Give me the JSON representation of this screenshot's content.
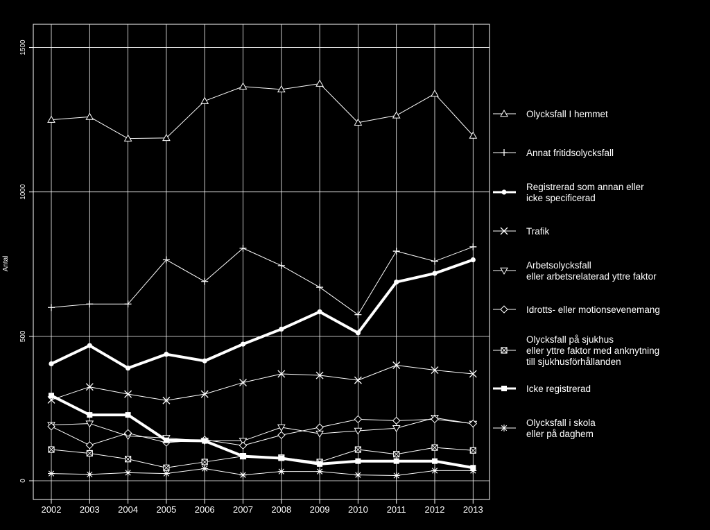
{
  "chart_data": {
    "type": "line",
    "ylabel": "Antal",
    "ylim": [
      0,
      1500
    ],
    "yticks": [
      0,
      500,
      1000,
      1500
    ],
    "grid": true,
    "legend_position": "right",
    "x": [
      "2002",
      "2003",
      "2004",
      "2005",
      "2006",
      "2007",
      "2008",
      "2009",
      "2010",
      "2011",
      "2012",
      "2013"
    ],
    "series": [
      {
        "name": [
          "Olycksfall I hemmet"
        ],
        "marker": "triangle-up",
        "width": 1,
        "color": "#ffffff",
        "values": [
          1250,
          1260,
          1185,
          1187,
          1315,
          1365,
          1355,
          1375,
          1240,
          1265,
          1340,
          1195
        ]
      },
      {
        "name": [
          "Annat fritidsolycksfall"
        ],
        "marker": "plus",
        "width": 1,
        "color": "#ffffff",
        "values": [
          600,
          612,
          612,
          765,
          690,
          805,
          745,
          670,
          575,
          795,
          760,
          810
        ]
      },
      {
        "name": [
          "Registrerad som annan eller",
          "icke specificerad"
        ],
        "marker": "dot",
        "width": 4,
        "color": "#ffffff",
        "values": [
          405,
          468,
          390,
          438,
          415,
          473,
          525,
          585,
          512,
          688,
          718,
          765
        ]
      },
      {
        "name": [
          "Trafik"
        ],
        "marker": "x",
        "width": 1,
        "color": "#ffffff",
        "values": [
          280,
          325,
          300,
          278,
          300,
          340,
          370,
          365,
          348,
          400,
          383,
          370
        ]
      },
      {
        "name": [
          "Arbetsolycksfall",
          "eller arbetsrelaterad yttre faktor"
        ],
        "marker": "triangle-down",
        "width": 1,
        "color": "#ffffff",
        "values": [
          193,
          198,
          155,
          148,
          138,
          138,
          185,
          163,
          173,
          182,
          218,
          197
        ]
      },
      {
        "name": [
          "Idrotts- eller motionsevenemang"
        ],
        "marker": "diamond",
        "width": 1,
        "color": "#ffffff",
        "values": [
          188,
          123,
          165,
          132,
          142,
          122,
          158,
          185,
          213,
          208,
          213,
          198
        ]
      },
      {
        "name": [
          "Olycksfall på sjukhus",
          "eller yttre faktor med anknytning",
          "till sjukhusförhållanden"
        ],
        "marker": "square-x",
        "width": 1,
        "color": "#ffffff",
        "values": [
          108,
          95,
          75,
          45,
          65,
          85,
          80,
          65,
          108,
          92,
          115,
          105
        ]
      },
      {
        "name": [
          "Icke registrerad"
        ],
        "marker": "square",
        "width": 4,
        "color": "#ffffff",
        "values": [
          295,
          228,
          228,
          140,
          138,
          85,
          78,
          58,
          68,
          68,
          68,
          45
        ]
      },
      {
        "name": [
          "Olycksfall i skola",
          "eller på daghem"
        ],
        "marker": "asterisk",
        "width": 1,
        "color": "#ffffff",
        "values": [
          25,
          22,
          28,
          25,
          42,
          20,
          32,
          32,
          20,
          18,
          35,
          35
        ]
      }
    ]
  }
}
